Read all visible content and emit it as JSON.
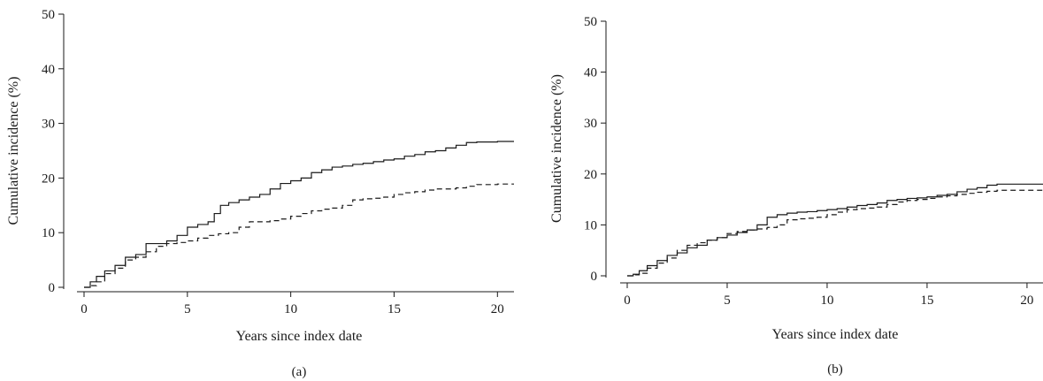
{
  "chart_data": [
    {
      "type": "line",
      "panel_label": "(a)",
      "title": "",
      "xlabel": "Years since index date",
      "ylabel": "Cumulative incidence (%)",
      "xlim": [
        0,
        20.8
      ],
      "ylim": [
        0,
        50
      ],
      "xticks": [
        0,
        5,
        10,
        15,
        20
      ],
      "yticks": [
        0,
        10,
        20,
        30,
        40,
        50
      ],
      "grid": false,
      "step": true,
      "series": [
        {
          "style": "solid",
          "x": [
            0,
            0.3,
            0.6,
            1.0,
            1.5,
            2.0,
            2.5,
            3.0,
            3.5,
            4.0,
            4.5,
            5.0,
            5.5,
            6.0,
            6.3,
            6.6,
            7.0,
            7.5,
            8.0,
            8.5,
            9.0,
            9.5,
            10.0,
            10.5,
            11.0,
            11.5,
            12.0,
            12.5,
            13.0,
            13.5,
            14.0,
            14.5,
            15.0,
            15.5,
            16.0,
            16.5,
            17.0,
            17.5,
            18.0,
            18.5,
            19.0,
            20.0,
            20.8
          ],
          "y": [
            0,
            1.0,
            2.0,
            3.0,
            4.0,
            5.5,
            6.0,
            8.0,
            8.0,
            8.5,
            9.5,
            11.0,
            11.5,
            12.0,
            13.5,
            15.0,
            15.5,
            16.0,
            16.5,
            17.0,
            18.0,
            19.0,
            19.5,
            20.0,
            21.0,
            21.5,
            22.0,
            22.2,
            22.5,
            22.7,
            23.0,
            23.3,
            23.5,
            24.0,
            24.3,
            24.8,
            25.0,
            25.5,
            26.0,
            26.5,
            26.6,
            26.7,
            26.7
          ]
        },
        {
          "style": "dashed",
          "x": [
            0,
            0.3,
            0.6,
            1.0,
            1.5,
            2.0,
            2.5,
            3.0,
            3.5,
            4.0,
            4.5,
            5.0,
            5.5,
            6.0,
            6.5,
            7.0,
            7.5,
            8.0,
            8.5,
            9.0,
            9.5,
            10.0,
            10.5,
            11.0,
            11.5,
            12.0,
            12.5,
            13.0,
            13.5,
            14.0,
            14.5,
            15.0,
            15.5,
            16.0,
            16.5,
            17.0,
            17.5,
            18.0,
            18.5,
            19.0,
            20.0,
            20.8
          ],
          "y": [
            0,
            0.3,
            1.0,
            2.5,
            3.5,
            5.0,
            5.5,
            6.5,
            7.5,
            8.0,
            8.2,
            8.5,
            9.0,
            9.5,
            9.8,
            10.0,
            11.0,
            12.0,
            12.0,
            12.2,
            12.5,
            13.0,
            13.5,
            14.0,
            14.3,
            14.5,
            15.0,
            16.0,
            16.2,
            16.3,
            16.5,
            17.0,
            17.3,
            17.5,
            17.8,
            18.0,
            18.0,
            18.2,
            18.5,
            18.8,
            18.9,
            18.9
          ]
        }
      ]
    },
    {
      "type": "line",
      "panel_label": "(b)",
      "title": "",
      "xlabel": "Years since index date",
      "ylabel": "Cumulative incidence (%)",
      "xlim": [
        0,
        20.8
      ],
      "ylim": [
        0,
        50
      ],
      "xticks": [
        0,
        5,
        10,
        15,
        20
      ],
      "yticks": [
        0,
        10,
        20,
        30,
        40,
        50
      ],
      "grid": false,
      "step": true,
      "series": [
        {
          "style": "solid",
          "x": [
            0,
            0.3,
            0.6,
            1.0,
            1.5,
            2.0,
            2.5,
            3.0,
            3.5,
            4.0,
            4.5,
            5.0,
            5.5,
            6.0,
            6.5,
            7.0,
            7.5,
            8.0,
            8.5,
            9.0,
            9.5,
            10.0,
            10.5,
            11.0,
            11.5,
            12.0,
            12.5,
            13.0,
            13.5,
            14.0,
            14.5,
            15.0,
            15.5,
            16.0,
            16.5,
            17.0,
            17.5,
            18.0,
            18.5,
            20.8
          ],
          "y": [
            0,
            0.3,
            1.0,
            2.0,
            3.0,
            4.0,
            4.5,
            5.5,
            6.0,
            7.0,
            7.5,
            8.0,
            8.5,
            9.0,
            10.0,
            11.5,
            12.0,
            12.3,
            12.5,
            12.6,
            12.8,
            13.0,
            13.2,
            13.5,
            13.8,
            14.0,
            14.3,
            14.8,
            15.0,
            15.2,
            15.3,
            15.5,
            15.8,
            16.0,
            16.5,
            17.0,
            17.3,
            17.8,
            18.0,
            18.0
          ]
        },
        {
          "style": "dashed",
          "x": [
            0,
            0.3,
            0.6,
            1.0,
            1.5,
            2.0,
            2.5,
            3.0,
            3.5,
            4.0,
            4.5,
            5.0,
            5.5,
            6.0,
            6.5,
            7.0,
            7.5,
            8.0,
            8.5,
            9.0,
            9.5,
            10.0,
            10.5,
            11.0,
            11.5,
            12.0,
            12.5,
            13.0,
            13.5,
            14.0,
            14.5,
            15.0,
            15.5,
            16.0,
            16.5,
            17.0,
            17.5,
            18.0,
            18.5,
            20.8
          ],
          "y": [
            0,
            0.2,
            0.5,
            1.5,
            2.5,
            3.5,
            5.0,
            6.0,
            6.5,
            7.0,
            7.5,
            8.3,
            8.7,
            9.0,
            9.2,
            9.5,
            10.0,
            11.0,
            11.2,
            11.3,
            11.5,
            12.0,
            12.5,
            13.0,
            13.2,
            13.3,
            13.5,
            14.0,
            14.5,
            14.8,
            15.0,
            15.2,
            15.5,
            15.7,
            16.0,
            16.2,
            16.4,
            16.6,
            16.8,
            16.9
          ]
        }
      ]
    }
  ]
}
